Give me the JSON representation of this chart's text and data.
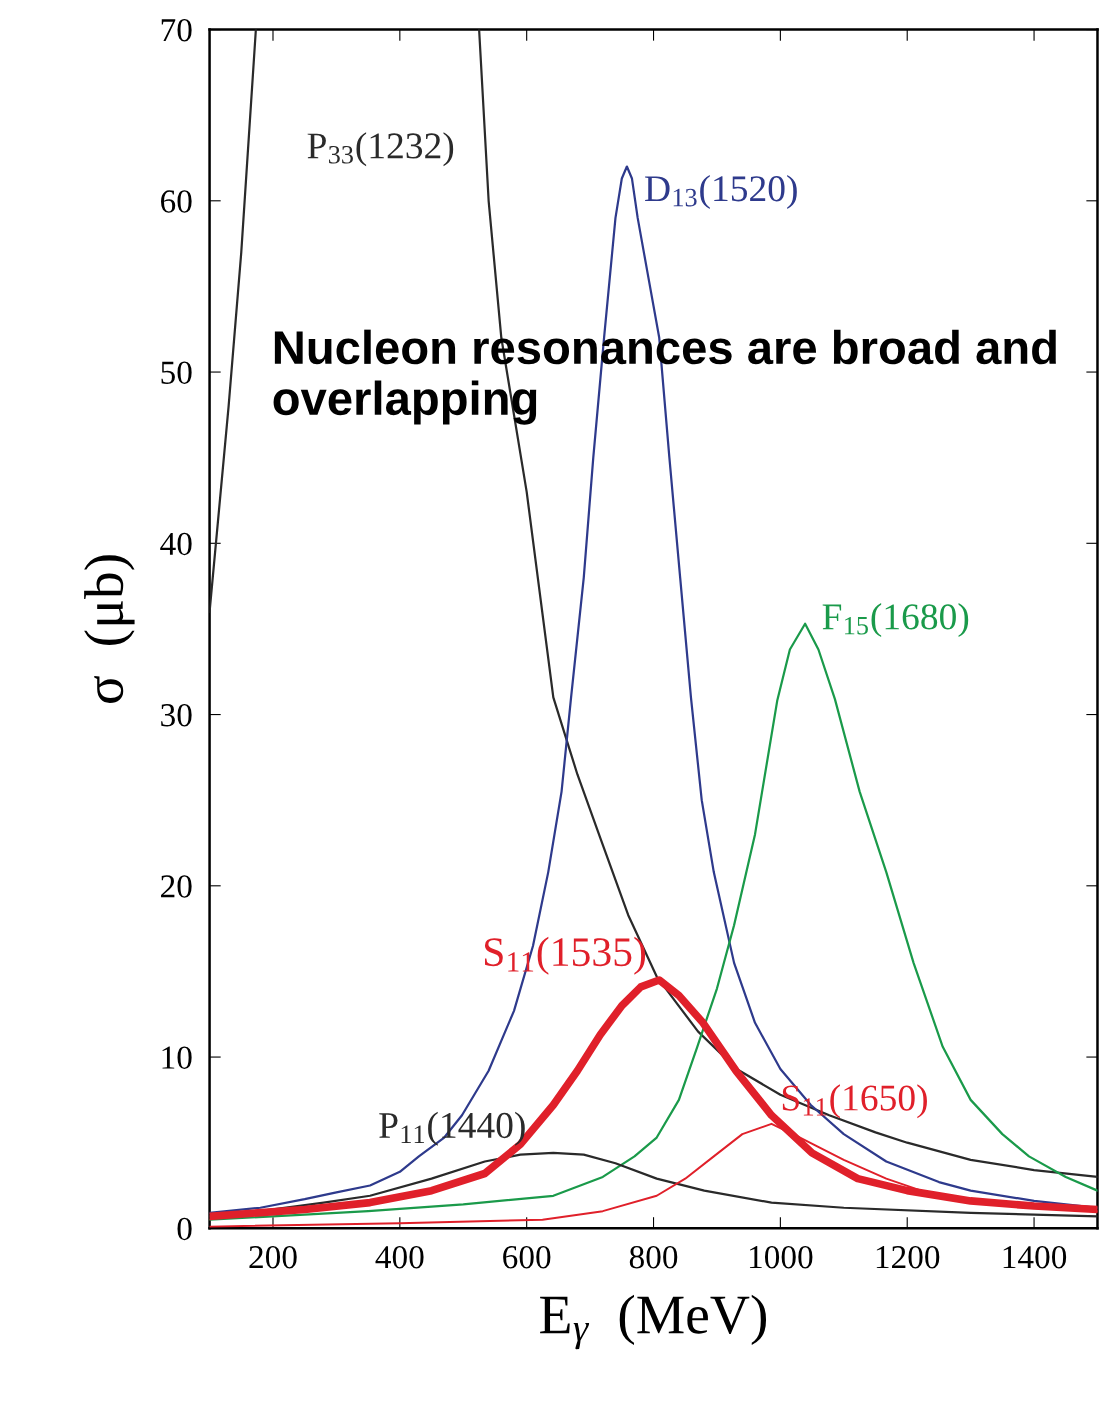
{
  "chart_data": {
    "type": "line",
    "xlabel": "E$_{γ}$  (MeV)",
    "ylabel": "σ  (μb)",
    "xlim": [
      100,
      1500
    ],
    "ylim": [
      0,
      70
    ],
    "xticks": [
      200,
      400,
      600,
      800,
      1000,
      1200,
      1400
    ],
    "yticks": [
      0,
      10,
      20,
      30,
      40,
      50,
      60,
      70
    ],
    "grid": false,
    "legend": false,
    "marker": "none",
    "line_style": "solid",
    "annotations": [
      "Nucleon resonances are broad and overlapping"
    ],
    "series": [
      {
        "name": "P$_{33}$(1232)",
        "color": "#2a2a2a",
        "x": [
          100,
          115,
          130,
          150,
          173,
          350,
          525,
          540,
          560,
          600,
          642,
          680,
          716,
          760,
          805,
          870,
          931,
          1000,
          1077,
          1150,
          1200,
          1300,
          1400,
          1500
        ],
        "values": [
          36,
          42,
          48,
          57,
          70,
          null,
          70,
          60,
          52,
          43,
          31,
          26.5,
          22.8,
          18.3,
          14.7,
          11.5,
          9.3,
          7.8,
          6.6,
          5.6,
          5.0,
          4.0,
          3.4,
          3.0
        ]
      },
      {
        "name": "D$_{13}$(1520)",
        "color": "#2e3a8c",
        "x": [
          100,
          180,
          250,
          300,
          353,
          400,
          430,
          470,
          498,
          540,
          580,
          610,
          634,
          655,
          670,
          690,
          705,
          722,
          740,
          750,
          758,
          766,
          775,
          792,
          809,
          825,
          842,
          859,
          876,
          895,
          927,
          960,
          1000,
          1048,
          1100,
          1167,
          1250,
          1300,
          1400,
          1500
        ],
        "values": [
          0.9,
          1.2,
          1.7,
          2.1,
          2.5,
          3.3,
          4.2,
          5.3,
          6.6,
          9.2,
          12.7,
          16.5,
          20.8,
          25.5,
          31,
          38,
          45,
          52,
          59,
          61.3,
          62,
          61.3,
          59,
          55.5,
          52,
          45,
          38,
          31,
          25,
          20.8,
          15.5,
          12,
          9.3,
          7.2,
          5.5,
          3.9,
          2.7,
          2.2,
          1.6,
          1.2
        ]
      },
      {
        "name": "F$_{15}$(1680)",
        "color": "#1a9a4a",
        "x": [
          100,
          250,
          350,
          500,
          642,
          720,
          770,
          805,
          840,
          869,
          900,
          927,
          960,
          995,
          1015,
          1039,
          1060,
          1086,
          1125,
          1167,
          1210,
          1256,
          1300,
          1350,
          1392,
          1450,
          1500
        ],
        "values": [
          0.5,
          0.8,
          1.0,
          1.4,
          1.9,
          3.0,
          4.2,
          5.3,
          7.5,
          10.6,
          14,
          17.7,
          23,
          30.8,
          33.8,
          35.3,
          33.8,
          30.9,
          25.5,
          20.8,
          15.5,
          10.6,
          7.5,
          5.5,
          4.2,
          3.0,
          2.2
        ]
      },
      {
        "name": "P$_{11}$(1440)",
        "color": "#2a2a2a",
        "x": [
          100,
          200,
          280,
          353,
          450,
          534,
          590,
          642,
          690,
          740,
          805,
          880,
          986,
          1100,
          1300,
          1500
        ],
        "values": [
          0.7,
          1.1,
          1.5,
          1.9,
          2.9,
          3.9,
          4.3,
          4.4,
          4.3,
          3.8,
          2.9,
          2.2,
          1.5,
          1.2,
          0.9,
          0.7
        ]
      },
      {
        "name": "S$_{11}$(1535)",
        "color": "#e0202a",
        "x": [
          100,
          250,
          353,
          450,
          534,
          590,
          642,
          680,
          716,
          750,
          780,
          809,
          840,
          878,
          930,
          986,
          1050,
          1122,
          1200,
          1300,
          1400,
          1500
        ],
        "values": [
          0.7,
          1.1,
          1.5,
          2.2,
          3.2,
          4.9,
          7.2,
          9.2,
          11.3,
          13.0,
          14.1,
          14.5,
          13.6,
          12.0,
          9.2,
          6.6,
          4.4,
          2.9,
          2.2,
          1.6,
          1.3,
          1.1
        ]
      },
      {
        "name": "S$_{11}$(1650)",
        "color": "#e0202a",
        "x": [
          100,
          400,
          625,
          720,
          805,
          850,
          895,
          940,
          986,
          1031,
          1100,
          1167,
          1230,
          1300,
          1400,
          1500
        ],
        "values": [
          0.1,
          0.3,
          0.5,
          1.0,
          1.9,
          2.9,
          4.2,
          5.5,
          6.1,
          5.3,
          4.0,
          2.9,
          2.1,
          1.6,
          1.2,
          1.0
        ]
      }
    ]
  }
}
